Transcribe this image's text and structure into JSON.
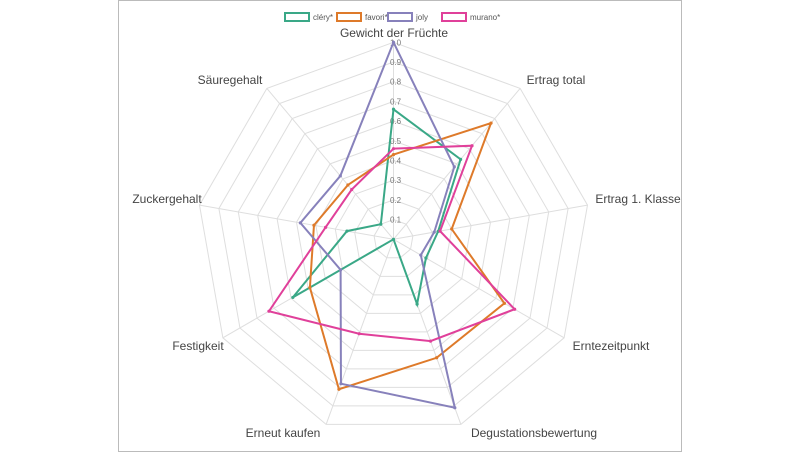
{
  "chart_data": {
    "type": "radar",
    "axes": [
      "Gewicht der Früchte",
      "Ertrag total",
      "Ertrag 1. Klasse",
      "Erntezeitpunkt",
      "Degustationsbewertung",
      "Erneut kaufen",
      "Festigkeit",
      "Zuckergehalt",
      "Säuregehalt"
    ],
    "range": [
      0,
      1
    ],
    "ticks": [
      "0.1",
      "0.2",
      "0.3",
      "0.4",
      "0.5",
      "0.6",
      "0.7",
      "0.8",
      "0.9",
      "1.0"
    ],
    "grid": true,
    "legend_position": "top",
    "series": [
      {
        "name": "cléry*",
        "color": "#3aa887",
        "values": [
          0.66,
          0.53,
          0.23,
          0.19,
          0.35,
          0.0,
          0.59,
          0.24,
          0.1
        ]
      },
      {
        "name": "favori*",
        "color": "#de7a2a",
        "values": [
          0.43,
          0.77,
          0.3,
          0.65,
          0.64,
          0.81,
          0.49,
          0.41,
          0.36
        ]
      },
      {
        "name": "joly",
        "color": "#8781bb",
        "values": [
          1.0,
          0.48,
          0.21,
          0.16,
          0.91,
          0.78,
          0.31,
          0.48,
          0.42
        ]
      },
      {
        "name": "murano*",
        "color": "#e0409a",
        "values": [
          0.46,
          0.62,
          0.24,
          0.71,
          0.55,
          0.51,
          0.73,
          0.35,
          0.33
        ]
      }
    ]
  }
}
